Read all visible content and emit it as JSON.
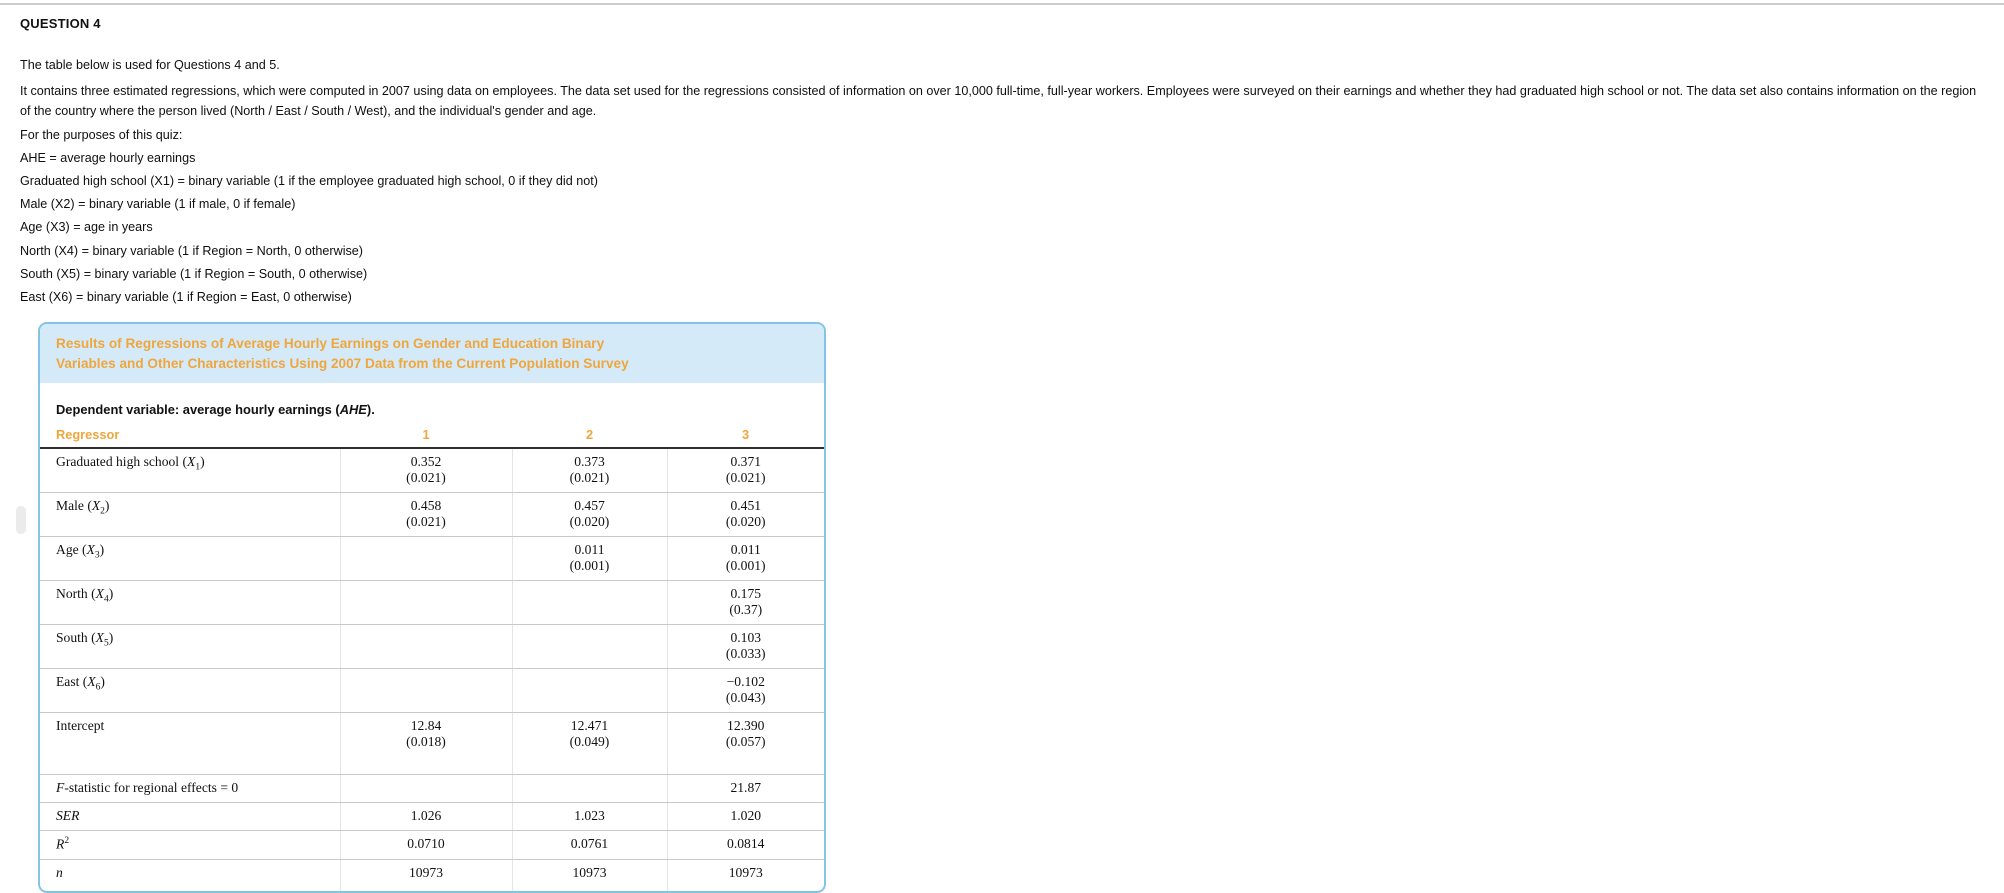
{
  "page": {
    "question_label": "QUESTION 4",
    "intro": [
      "The table below is used for Questions 4 and 5.",
      "It contains three estimated regressions, which were computed in 2007 using data on employees. The data set used for the regressions consisted of information on over 10,000 full-time, full-year workers. Employees were surveyed on their earnings and whether they had graduated high school or not. The data set also contains information on the region of the country where the person lived (North / East / South / West), and the individual's gender and age.",
      "For the purposes of this quiz:",
      "AHE = average hourly earnings",
      "Graduated high school (X1) = binary variable (1 if the employee graduated high school, 0 if they did not)",
      "Male (X2) = binary variable (1 if male, 0 if female)",
      "Age (X3) = age in years",
      "North (X4) = binary variable (1 if Region = North, 0 otherwise)",
      "South (X5) = binary variable (1 if Region = South, 0 otherwise)",
      "East (X6) = binary variable (1 if Region = East, 0 otherwise)"
    ]
  },
  "colors": {
    "accent_orange": "#EFA63C",
    "table_border_blue": "#82C3E6",
    "table_title_bg": "#D5EAF8",
    "header_rule": "#2E2E2E",
    "row_rule": "#C9C9C9"
  },
  "table": {
    "title_line1": "Results of Regressions of Average Hourly Earnings on Gender and Education Binary",
    "title_line2": "Variables and Other Characteristics Using 2007 Data from the Current Population Survey",
    "subtitle_prefix": "Dependent variable: average hourly earnings (",
    "subtitle_var": "AHE",
    "subtitle_suffix": ").",
    "header": {
      "regressor": "Regressor",
      "cols": [
        "1",
        "2",
        "3"
      ]
    },
    "coef_rows": [
      {
        "label": {
          "pre": "Graduated high school (",
          "it": "X",
          "sub": "1",
          "post": ")"
        },
        "cells": [
          {
            "est": "0.352",
            "se": "(0.021)"
          },
          {
            "est": "0.373",
            "se": "(0.021)"
          },
          {
            "est": "0.371",
            "se": "(0.021)"
          }
        ]
      },
      {
        "label": {
          "pre": "Male (",
          "it": "X",
          "sub": "2",
          "post": ")"
        },
        "cells": [
          {
            "est": "0.458",
            "se": "(0.021)"
          },
          {
            "est": "0.457",
            "se": "(0.020)"
          },
          {
            "est": "0.451",
            "se": "(0.020)"
          }
        ]
      },
      {
        "label": {
          "pre": "Age (",
          "it": "X",
          "sub": "3",
          "post": ")"
        },
        "cells": [
          null,
          {
            "est": "0.011",
            "se": "(0.001)"
          },
          {
            "est": "0.011",
            "se": "(0.001)"
          }
        ]
      },
      {
        "label": {
          "pre": "North (",
          "it": "X",
          "sub": "4",
          "post": ")"
        },
        "cells": [
          null,
          null,
          {
            "est": "0.175",
            "se": "(0.37)"
          }
        ]
      },
      {
        "label": {
          "pre": "South (",
          "it": "X",
          "sub": "5",
          "post": ")"
        },
        "cells": [
          null,
          null,
          {
            "est": "0.103",
            "se": "(0.033)"
          }
        ]
      },
      {
        "label": {
          "pre": "East (",
          "it": "X",
          "sub": "6",
          "post": ")"
        },
        "cells": [
          null,
          null,
          {
            "est": "−0.102",
            "se": "(0.043)"
          }
        ]
      },
      {
        "label": {
          "pre": "Intercept"
        },
        "tall": true,
        "cells": [
          {
            "est": "12.84",
            "se": "(0.018)"
          },
          {
            "est": "12.471",
            "se": "(0.049)"
          },
          {
            "est": "12.390",
            "se": "(0.057)"
          }
        ]
      }
    ],
    "stat_rows": [
      {
        "label": {
          "it": "F",
          "post": "-statistic for regional effects = 0"
        },
        "values": [
          "",
          "",
          "21.87"
        ]
      },
      {
        "label": {
          "it": "SER"
        },
        "values": [
          "1.026",
          "1.023",
          "1.020"
        ]
      },
      {
        "label": {
          "it": "R",
          "sup": "2"
        },
        "values": [
          "0.0710",
          "0.0761",
          "0.0814"
        ]
      },
      {
        "label": {
          "it": "n"
        },
        "values": [
          "10973",
          "10973",
          "10973"
        ]
      }
    ]
  }
}
